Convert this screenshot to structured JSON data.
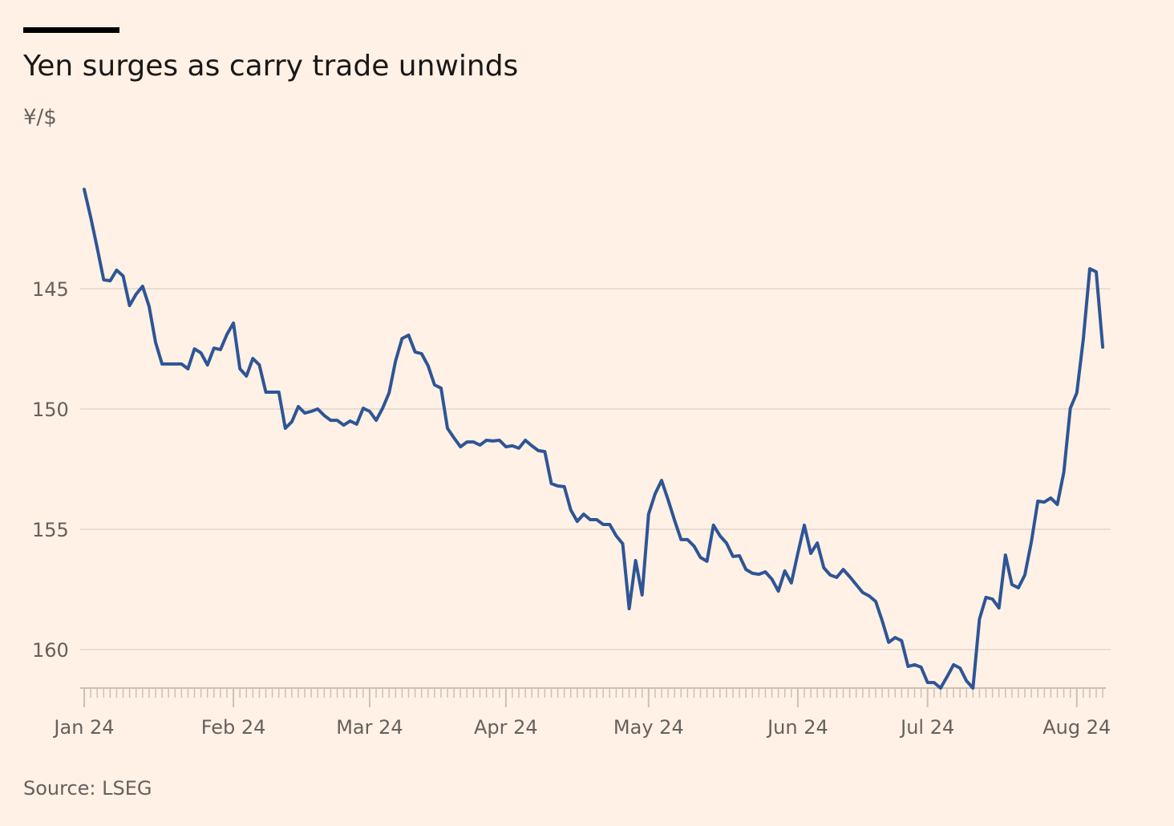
{
  "chart_data": {
    "type": "line",
    "title": "Yen surges as carry trade unwinds",
    "subtitle": "¥/$",
    "source": "Source: LSEG",
    "categories": [
      "Jan 24",
      null,
      null,
      null,
      null,
      null,
      null,
      null,
      null,
      null,
      null,
      null,
      null,
      null,
      null,
      null,
      null,
      null,
      null,
      null,
      null,
      null,
      null,
      "Feb 24",
      null,
      null,
      null,
      null,
      null,
      null,
      null,
      null,
      null,
      null,
      null,
      null,
      null,
      null,
      null,
      null,
      null,
      null,
      null,
      null,
      "Mar 24",
      null,
      null,
      null,
      null,
      null,
      null,
      null,
      null,
      null,
      null,
      null,
      null,
      null,
      null,
      null,
      null,
      null,
      null,
      null,
      null,
      "Apr 24",
      null,
      null,
      null,
      null,
      null,
      null,
      null,
      null,
      null,
      null,
      null,
      null,
      null,
      null,
      null,
      null,
      null,
      null,
      null,
      null,
      null,
      "May 24",
      null,
      null,
      null,
      null,
      null,
      null,
      null,
      null,
      null,
      null,
      null,
      null,
      null,
      null,
      null,
      null,
      null,
      null,
      null,
      null,
      null,
      null,
      "Jun 24",
      null,
      null,
      null,
      null,
      null,
      null,
      null,
      null,
      null,
      null,
      null,
      null,
      null,
      null,
      null,
      null,
      null,
      null,
      null,
      "Jul 24",
      null,
      null,
      null,
      null,
      null,
      null,
      null,
      null,
      null,
      null,
      null,
      null,
      null,
      null,
      null,
      null,
      null,
      null,
      null,
      null,
      null,
      null,
      "Aug 24",
      null,
      null,
      null,
      null
    ],
    "series": [
      {
        "color": "#2e5596",
        "values": [
          140.87,
          142.03,
          143.3,
          144.63,
          144.67,
          144.23,
          144.47,
          145.7,
          145.23,
          144.9,
          145.73,
          147.23,
          148.13,
          148.13,
          148.13,
          148.13,
          148.33,
          147.5,
          147.67,
          148.17,
          147.47,
          147.53,
          146.9,
          146.43,
          148.33,
          148.63,
          147.9,
          148.17,
          149.3,
          149.3,
          149.3,
          150.8,
          150.53,
          149.9,
          150.17,
          150.1,
          150.0,
          150.27,
          150.47,
          150.47,
          150.67,
          150.5,
          150.63,
          149.97,
          150.1,
          150.47,
          149.97,
          149.33,
          148.0,
          147.07,
          146.93,
          147.63,
          147.7,
          148.2,
          149.0,
          149.13,
          150.8,
          151.2,
          151.57,
          151.37,
          151.37,
          151.5,
          151.3,
          151.33,
          151.3,
          151.57,
          151.53,
          151.63,
          151.3,
          151.53,
          151.73,
          151.77,
          153.1,
          153.2,
          153.23,
          154.2,
          154.67,
          154.37,
          154.6,
          154.6,
          154.8,
          154.8,
          155.27,
          155.6,
          158.3,
          156.3,
          157.73,
          154.37,
          153.53,
          152.97,
          153.77,
          154.63,
          155.43,
          155.43,
          155.7,
          156.17,
          156.33,
          154.83,
          155.27,
          155.57,
          156.13,
          156.1,
          156.67,
          156.83,
          156.87,
          156.77,
          157.07,
          157.57,
          156.73,
          157.23,
          156.0,
          154.83,
          156.0,
          155.57,
          156.6,
          156.9,
          157.0,
          156.67,
          156.97,
          157.3,
          157.63,
          157.77,
          158.0,
          158.8,
          159.7,
          159.5,
          159.63,
          160.7,
          160.63,
          160.73,
          161.37,
          161.37,
          161.6,
          161.13,
          160.63,
          160.77,
          161.3,
          161.6,
          158.73,
          157.83,
          157.9,
          158.27,
          156.07,
          157.3,
          157.43,
          156.9,
          155.53,
          153.83,
          153.87,
          153.7,
          153.97,
          152.63,
          149.97,
          149.33,
          147.1,
          144.17,
          144.3,
          147.43
        ]
      }
    ],
    "ylim": [
      161.6,
      140.6
    ],
    "yticks": [
      145,
      150,
      155,
      160
    ],
    "grid": true
  }
}
